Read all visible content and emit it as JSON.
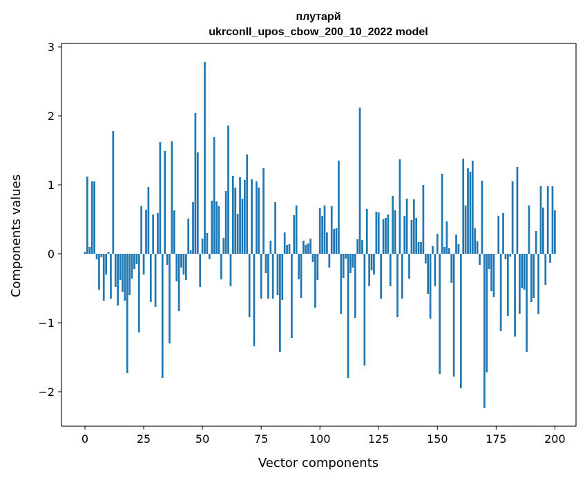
{
  "chart_data": {
    "type": "bar",
    "title": "плутарй",
    "subtitle": "ukrconll_upos_cbow_200_10_2022 model",
    "xlabel": "Vector components",
    "ylabel": "Components values",
    "xlim": [
      -10,
      209
    ],
    "ylim": [
      -2.5,
      3.05
    ],
    "xticks": [
      0,
      25,
      50,
      75,
      100,
      125,
      150,
      175,
      200
    ],
    "yticks": [
      -2,
      -1,
      0,
      1,
      2,
      3
    ],
    "ytick_labels": [
      "−2",
      "−1",
      "0",
      "1",
      "2",
      "3"
    ],
    "bar_color": "#1f77b4",
    "grid": false,
    "values": [
      0.03,
      1.12,
      0.1,
      1.05,
      1.05,
      -0.08,
      -0.52,
      -0.05,
      -0.68,
      -0.3,
      0.03,
      -0.65,
      1.78,
      -0.48,
      -0.75,
      -0.38,
      -0.55,
      -0.68,
      -1.73,
      -0.6,
      -0.36,
      -0.22,
      -0.15,
      -1.14,
      0.69,
      -0.3,
      0.64,
      0.97,
      -0.7,
      0.57,
      -0.77,
      0.59,
      1.62,
      -1.8,
      1.49,
      -0.16,
      -1.3,
      1.63,
      0.63,
      -0.4,
      -0.83,
      -0.2,
      -0.3,
      -0.38,
      0.51,
      0.05,
      0.75,
      2.04,
      1.47,
      -0.48,
      0.22,
      2.78,
      0.3,
      -0.08,
      0.77,
      1.69,
      0.76,
      0.69,
      -0.37,
      0.23,
      0.91,
      1.86,
      -0.47,
      1.13,
      0.96,
      0.58,
      1.11,
      0.8,
      1.07,
      1.44,
      -0.92,
      1.08,
      -1.34,
      1.05,
      0.96,
      -0.65,
      1.24,
      -0.28,
      -0.65,
      0.19,
      -0.65,
      0.75,
      -0.6,
      -1.42,
      -0.67,
      0.31,
      0.13,
      0.14,
      -1.22,
      0.56,
      0.7,
      -0.37,
      -0.64,
      0.19,
      0.13,
      0.15,
      0.22,
      -0.12,
      -0.78,
      -0.38,
      0.66,
      0.55,
      0.7,
      0.31,
      -0.2,
      0.69,
      0.36,
      0.37,
      1.35,
      -0.87,
      -0.35,
      -0.07,
      -1.8,
      -0.28,
      -0.2,
      -0.93,
      0.21,
      2.12,
      0.2,
      -1.62,
      0.65,
      -0.47,
      -0.24,
      -0.3,
      0.61,
      0.6,
      -0.65,
      0.5,
      0.52,
      0.57,
      -0.47,
      0.84,
      0.63,
      -0.92,
      1.37,
      -0.65,
      0.55,
      0.8,
      -0.36,
      0.49,
      0.79,
      0.52,
      0.17,
      0.17,
      1.0,
      -0.14,
      -0.58,
      -0.94,
      0.11,
      -0.47,
      0.29,
      -1.74,
      1.16,
      0.1,
      0.47,
      0.08,
      -0.42,
      -1.78,
      0.28,
      0.14,
      -1.95,
      1.38,
      0.7,
      1.24,
      1.19,
      1.35,
      0.37,
      0.18,
      -0.16,
      1.06,
      -2.24,
      -1.72,
      -0.22,
      -0.54,
      -0.63,
      0.0,
      0.55,
      -1.12,
      0.59,
      -0.08,
      -0.9,
      -0.04,
      1.05,
      -1.2,
      1.26,
      -0.87,
      -0.5,
      -0.52,
      -1.42,
      0.7,
      -0.7,
      -0.64,
      0.33,
      -0.87,
      0.98,
      0.67,
      -0.45,
      0.98,
      -0.13,
      0.98,
      0.63
    ]
  }
}
